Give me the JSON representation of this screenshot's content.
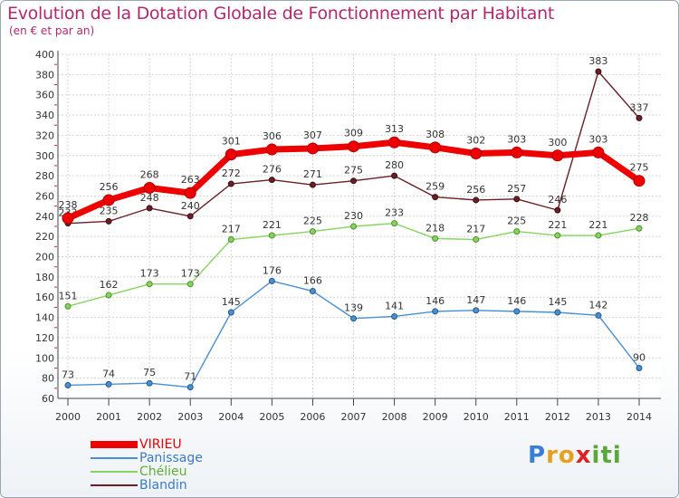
{
  "header": {
    "title": "Evolution de la Dotation Globale de Fonctionnement par Habitant",
    "subtitle": "(en € et par an)"
  },
  "chart_data": {
    "type": "line",
    "title": "Evolution de la Dotation Globale de Fonctionnement par Habitant",
    "subtitle": "(en € et par an)",
    "xlabel": "",
    "ylabel": "",
    "ylim": [
      60,
      400
    ],
    "ytick_step": 20,
    "x": [
      "2000",
      "2001",
      "2002",
      "2003",
      "2004",
      "2005",
      "2006",
      "2007",
      "2008",
      "2009",
      "2010",
      "2011",
      "2012",
      "2013",
      "2014"
    ],
    "series": [
      {
        "name": "Blandin",
        "color": "#6b1f24",
        "values": [
          233,
          235,
          248,
          240,
          272,
          276,
          271,
          275,
          280,
          259,
          256,
          257,
          246,
          383,
          337
        ]
      },
      {
        "name": "Chélieu",
        "color": "#86d45e",
        "values": [
          151,
          162,
          173,
          173,
          217,
          221,
          225,
          230,
          233,
          218,
          217,
          225,
          221,
          221,
          228
        ]
      },
      {
        "name": "Panissage",
        "color": "#4a8fd0",
        "values": [
          73,
          74,
          75,
          71,
          145,
          176,
          166,
          139,
          141,
          146,
          147,
          146,
          145,
          142,
          90
        ]
      },
      {
        "name": "VIRIEU",
        "color": "#ee0000",
        "values": [
          238,
          256,
          268,
          263,
          301,
          306,
          307,
          309,
          313,
          308,
          302,
          303,
          300,
          303,
          275
        ]
      }
    ],
    "legend_order": [
      "VIRIEU",
      "Panissage",
      "Chélieu",
      "Blandin"
    ],
    "legend": "bottom-left",
    "grid": true
  },
  "legend": {
    "items": [
      {
        "label": "VIRIEU",
        "color": "#ee0000"
      },
      {
        "label": "Panissage",
        "color": "#4a8fd0"
      },
      {
        "label": "Chélieu",
        "color": "#86d45e"
      },
      {
        "label": "Blandin",
        "color": "#6b1f24"
      }
    ]
  },
  "logo": {
    "letters": [
      "P",
      "r",
      "o",
      "x",
      "i",
      "t",
      "i"
    ],
    "colors": [
      "#3a7fd5",
      "#e8a020",
      "#e8a020",
      "#dd2222",
      "#5aa83a",
      "#5aa83a",
      "#5aa83a"
    ]
  }
}
